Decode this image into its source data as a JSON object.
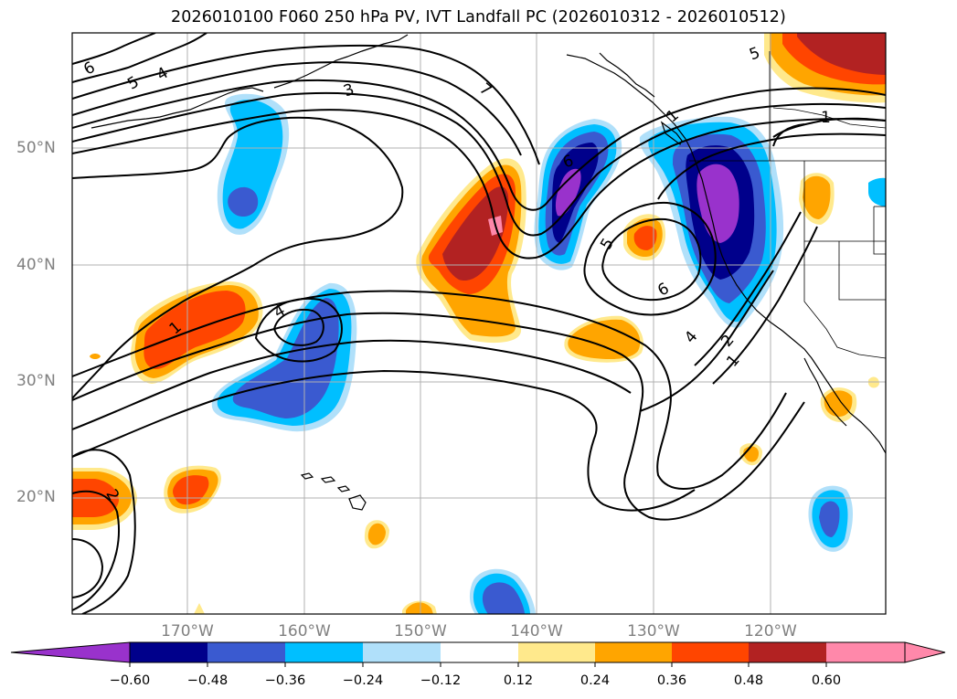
{
  "title": "2026010100 F060 250 hPa PV, IVT Landfall PC (2026010312 - 2026010512)",
  "lat_labels": [
    "50°N",
    "40°N",
    "30°N",
    "20°N"
  ],
  "lon_labels": [
    "170°W",
    "160°W",
    "150°W",
    "140°W",
    "130°W",
    "120°W"
  ],
  "contour_labels": [
    "6",
    "5",
    "4",
    "3",
    "7",
    "1",
    "5",
    "1",
    "4",
    "5",
    "6",
    "4",
    "2",
    "1",
    "2",
    "6",
    "1"
  ],
  "colorbar": {
    "ticks": [
      "−0.60",
      "−0.48",
      "−0.36",
      "−0.24",
      "−0.12",
      "0.12",
      "0.24",
      "0.36",
      "0.48",
      "0.60"
    ],
    "colors": [
      "#9932cc",
      "#00008b",
      "#3a5ad0",
      "#00bfff",
      "#b0e0fa",
      "#ffffff",
      "#ffe98c",
      "#ffa500",
      "#ff4500",
      "#b22222",
      "#ff88aa",
      "#ff88aa"
    ]
  }
}
